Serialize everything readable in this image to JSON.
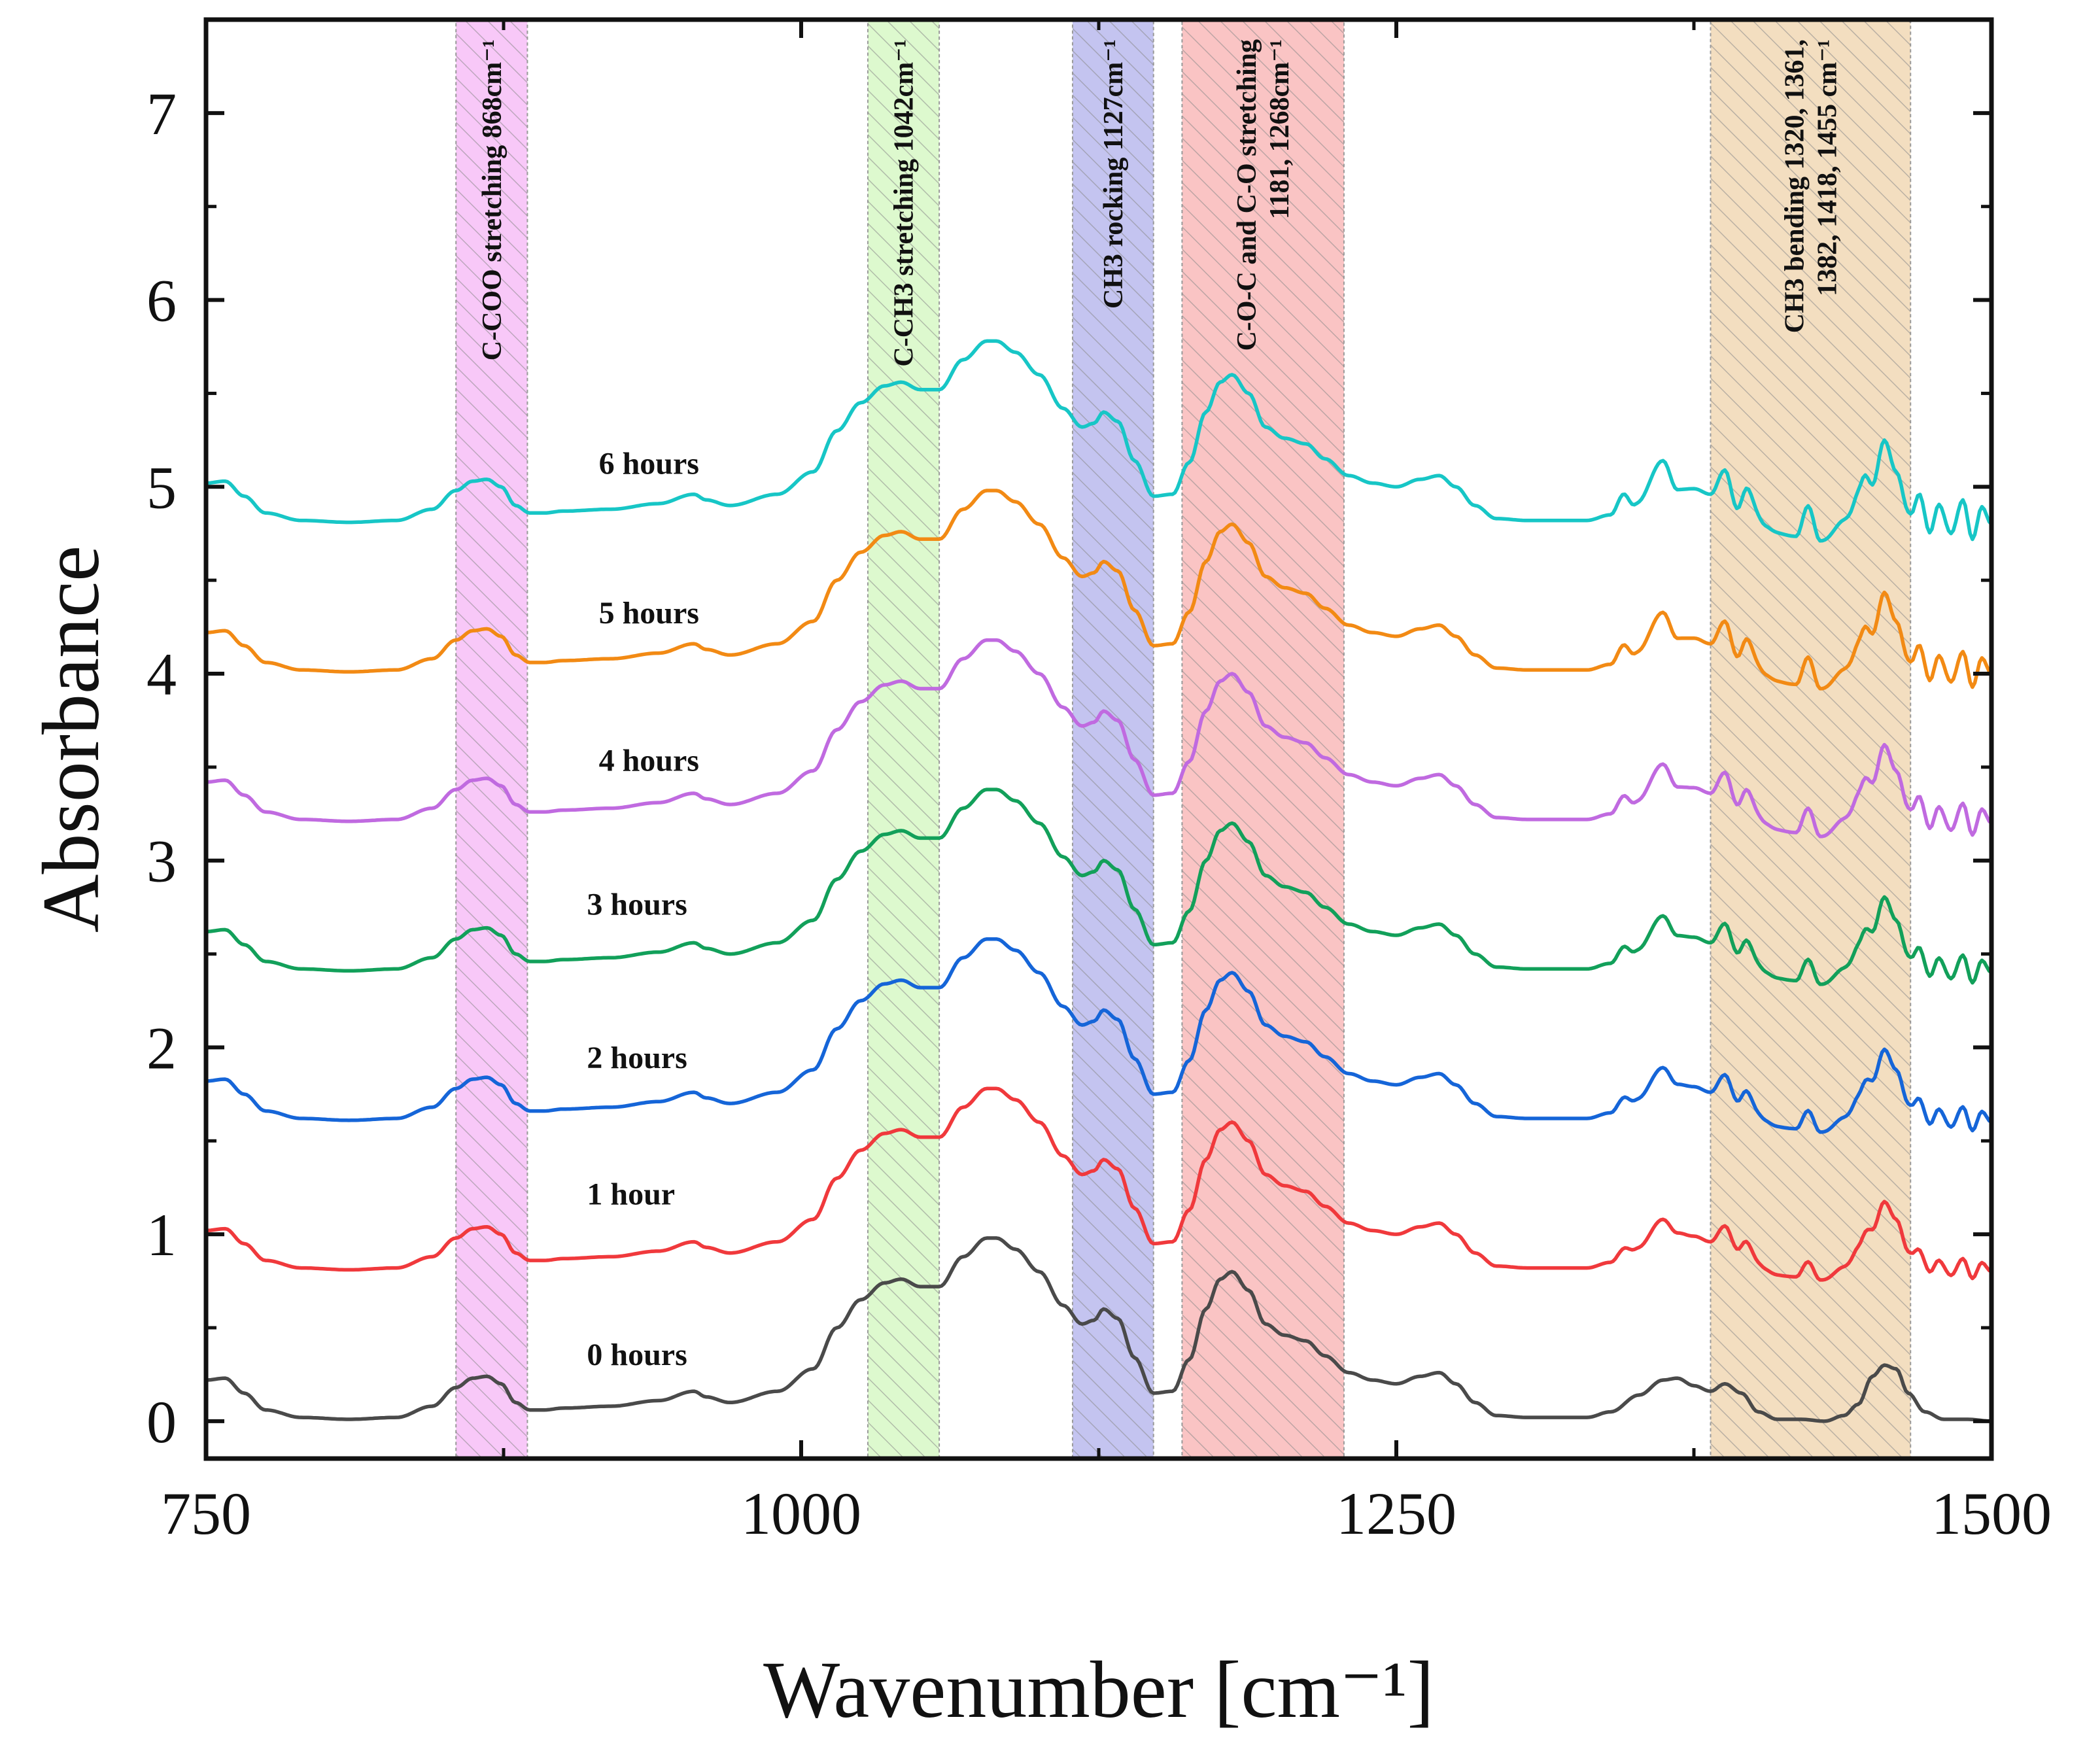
{
  "chart_data": {
    "type": "line",
    "xlabel": "Wavenumber [cm⁻¹]",
    "ylabel": "Absorbance",
    "xlim": [
      750,
      1500
    ],
    "ylim": [
      -0.2,
      7.5
    ],
    "xticks": [
      750,
      1000,
      1250,
      1500
    ],
    "yticks": [
      0,
      1,
      2,
      3,
      4,
      5,
      6,
      7
    ],
    "grid": false,
    "bands": [
      {
        "id": "ccoo",
        "range": [
          855,
          885
        ],
        "color": "#f4a6f4",
        "lines": [
          "C-COO stretching 868cm⁻¹"
        ]
      },
      {
        "id": "cch3",
        "range": [
          1028,
          1058
        ],
        "color": "#c8f5b0",
        "lines": [
          "C-CH3 stretching 1042cm⁻¹"
        ]
      },
      {
        "id": "rock",
        "range": [
          1114,
          1148
        ],
        "color": "#9f9fe6",
        "lines": [
          "CH3 rocking 1127cm⁻¹"
        ]
      },
      {
        "id": "coc",
        "range": [
          1160,
          1228
        ],
        "color": "#f7a0a0",
        "lines": [
          "C-O-C and C-O stretching",
          "1181, 1268cm⁻¹"
        ]
      },
      {
        "id": "bend",
        "range": [
          1382,
          1466
        ],
        "color": "#ecc99a",
        "lines": [
          "CH3 bending 1320, 1361,",
          "1382, 1418, 1455 cm⁻¹"
        ]
      }
    ],
    "series": [
      {
        "name": "0 hours",
        "color": "#4a4a4a",
        "offset": 0.0,
        "label_pos": [
          910,
          0.3
        ]
      },
      {
        "name": "1 hour",
        "color": "#f0393c",
        "offset": 0.8,
        "label_pos": [
          910,
          1.16
        ]
      },
      {
        "name": "2 hours",
        "color": "#1565d8",
        "offset": 1.6,
        "label_pos": [
          910,
          1.89
        ]
      },
      {
        "name": "3 hours",
        "color": "#12a05a",
        "offset": 2.4,
        "label_pos": [
          910,
          2.71
        ]
      },
      {
        "name": "4 hours",
        "color": "#c06ae0",
        "offset": 3.2,
        "label_pos": [
          915,
          3.48
        ]
      },
      {
        "name": "5 hours",
        "color": "#f28a14",
        "offset": 4.0,
        "label_pos": [
          915,
          4.27
        ]
      },
      {
        "name": "6 hours",
        "color": "#17c6c6",
        "offset": 4.8,
        "label_pos": [
          915,
          5.07
        ]
      }
    ],
    "baseline_spectrum": {
      "x": [
        750,
        758,
        766,
        775,
        790,
        810,
        830,
        845,
        855,
        862,
        868,
        874,
        880,
        886,
        892,
        900,
        920,
        940,
        955,
        960,
        970,
        990,
        1005,
        1015,
        1025,
        1035,
        1042,
        1050,
        1058,
        1068,
        1078,
        1082,
        1090,
        1100,
        1110,
        1118,
        1123,
        1127,
        1133,
        1140,
        1148,
        1156,
        1163,
        1170,
        1176,
        1181,
        1188,
        1195,
        1203,
        1212,
        1220,
        1230,
        1240,
        1250,
        1260,
        1268,
        1275,
        1283,
        1292,
        1305,
        1320,
        1330,
        1340,
        1352,
        1362,
        1368,
        1375,
        1382,
        1388,
        1395,
        1402,
        1410,
        1420,
        1430,
        1438,
        1444,
        1450,
        1455,
        1460,
        1465,
        1472,
        1480,
        1490,
        1500
      ],
      "y": [
        0.22,
        0.23,
        0.15,
        0.06,
        0.02,
        0.01,
        0.02,
        0.08,
        0.18,
        0.23,
        0.24,
        0.2,
        0.1,
        0.06,
        0.06,
        0.07,
        0.08,
        0.11,
        0.16,
        0.13,
        0.1,
        0.16,
        0.28,
        0.5,
        0.65,
        0.74,
        0.76,
        0.72,
        0.72,
        0.88,
        0.98,
        0.98,
        0.92,
        0.8,
        0.62,
        0.52,
        0.54,
        0.6,
        0.55,
        0.34,
        0.15,
        0.16,
        0.33,
        0.6,
        0.76,
        0.8,
        0.7,
        0.52,
        0.46,
        0.43,
        0.35,
        0.26,
        0.22,
        0.2,
        0.24,
        0.26,
        0.2,
        0.1,
        0.03,
        0.02,
        0.02,
        0.02,
        0.05,
        0.14,
        0.22,
        0.23,
        0.19,
        0.16,
        0.2,
        0.15,
        0.05,
        0.01,
        0.01,
        0.0,
        0.03,
        0.09,
        0.24,
        0.3,
        0.28,
        0.15,
        0.05,
        0.01,
        0.01,
        0.0
      ]
    },
    "fine_structure": {
      "x": [
        1320,
        1340,
        1345,
        1350,
        1362,
        1368,
        1375,
        1382,
        1388,
        1393,
        1398,
        1405,
        1418,
        1423,
        1428,
        1440,
        1446,
        1450,
        1455,
        1460,
        1466,
        1470,
        1474,
        1478,
        1483,
        1488,
        1492,
        1496,
        1500
      ],
      "y": [
        0.0,
        0.0,
        0.05,
        -0.02,
        0.08,
        -0.03,
        0.0,
        0.0,
        0.06,
        -0.05,
        0.05,
        -0.03,
        -0.05,
        0.06,
        -0.06,
        0.0,
        0.08,
        -0.02,
        0.1,
        0.0,
        -0.06,
        0.06,
        -0.06,
        0.06,
        -0.04,
        0.08,
        -0.06,
        0.06,
        0.0
      ]
    }
  }
}
